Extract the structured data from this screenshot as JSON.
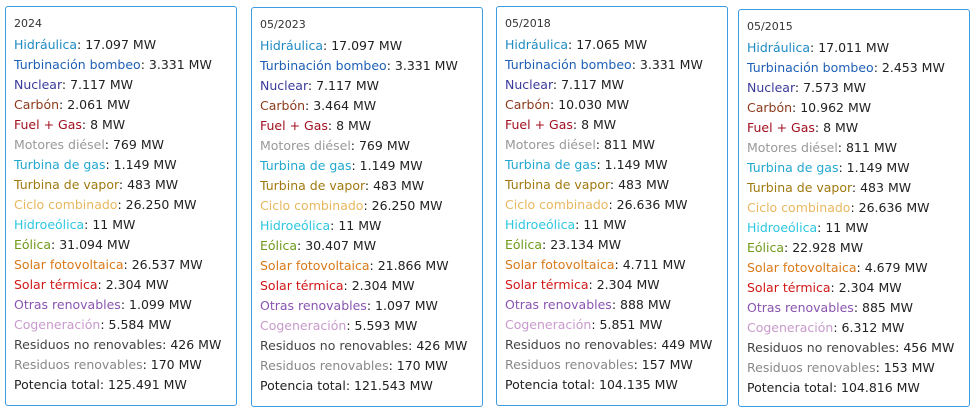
{
  "cards": [
    {
      "date": "2024",
      "rows": [
        {
          "label": "Hidráulica",
          "value": "17.097 MW",
          "color": "#1e8bc3"
        },
        {
          "label": "Turbinación bombeo",
          "value": "3.331 MW",
          "color": "#1e5fb5"
        },
        {
          "label": "Nuclear",
          "value": "7.117 MW",
          "color": "#3b3b9a"
        },
        {
          "label": "Carbón",
          "value": "2.061 MW",
          "color": "#8b3a1a"
        },
        {
          "label": "Fuel + Gas",
          "value": "8 MW",
          "color": "#a01020"
        },
        {
          "label": "Motores diésel",
          "value": "769 MW",
          "color": "#999999"
        },
        {
          "label": "Turbina de gas",
          "value": "1.149 MW",
          "color": "#22a7cf"
        },
        {
          "label": "Turbina de vapor",
          "value": "483 MW",
          "color": "#a07a10"
        },
        {
          "label": "Ciclo combinado",
          "value": "26.250 MW",
          "color": "#e8b860"
        },
        {
          "label": "Hidroeólica",
          "value": "11 MW",
          "color": "#2ec7e0"
        },
        {
          "label": "Eólica",
          "value": "31.094 MW",
          "color": "#6f9a1a"
        },
        {
          "label": "Solar fotovoltaica",
          "value": "26.537 MW",
          "color": "#d97a1a"
        },
        {
          "label": "Solar térmica",
          "value": "2.304 MW",
          "color": "#d01818"
        },
        {
          "label": "Otras renovables",
          "value": "1.099 MW",
          "color": "#8a55b0"
        },
        {
          "label": "Cogeneración",
          "value": "5.584 MW",
          "color": "#c89acc"
        },
        {
          "label": "Residuos no renovables",
          "value": "426 MW",
          "color": "#444444"
        },
        {
          "label": "Residuos renovables",
          "value": "170 MW",
          "color": "#888888"
        },
        {
          "label": "Potencia total",
          "value": "125.491 MW",
          "color": "#222222"
        }
      ]
    },
    {
      "date": "05/2023",
      "rows": [
        {
          "label": "Hidráulica",
          "value": "17.097 MW",
          "color": "#1e8bc3"
        },
        {
          "label": "Turbinación bombeo",
          "value": "3.331 MW",
          "color": "#1e5fb5"
        },
        {
          "label": "Nuclear",
          "value": "7.117 MW",
          "color": "#3b3b9a"
        },
        {
          "label": "Carbón",
          "value": "3.464 MW",
          "color": "#8b3a1a"
        },
        {
          "label": "Fuel + Gas",
          "value": "8 MW",
          "color": "#a01020"
        },
        {
          "label": "Motores diésel",
          "value": "769 MW",
          "color": "#999999"
        },
        {
          "label": "Turbina de gas",
          "value": "1.149 MW",
          "color": "#22a7cf"
        },
        {
          "label": "Turbina de vapor",
          "value": "483 MW",
          "color": "#a07a10"
        },
        {
          "label": "Ciclo combinado",
          "value": "26.250 MW",
          "color": "#e8b860"
        },
        {
          "label": "Hidroeólica",
          "value": "11 MW",
          "color": "#2ec7e0"
        },
        {
          "label": "Eólica",
          "value": "30.407 MW",
          "color": "#6f9a1a"
        },
        {
          "label": "Solar fotovoltaica",
          "value": "21.866 MW",
          "color": "#d97a1a"
        },
        {
          "label": "Solar térmica",
          "value": "2.304 MW",
          "color": "#d01818"
        },
        {
          "label": "Otras renovables",
          "value": "1.097 MW",
          "color": "#8a55b0"
        },
        {
          "label": "Cogeneración",
          "value": "5.593 MW",
          "color": "#c89acc"
        },
        {
          "label": "Residuos no renovables",
          "value": "426 MW",
          "color": "#444444"
        },
        {
          "label": "Residuos renovables",
          "value": "170 MW",
          "color": "#888888"
        },
        {
          "label": "Potencia total",
          "value": "121.543 MW",
          "color": "#222222"
        }
      ]
    },
    {
      "date": "05/2018",
      "rows": [
        {
          "label": "Hidráulica",
          "value": "17.065 MW",
          "color": "#1e8bc3"
        },
        {
          "label": "Turbinación bombeo",
          "value": "3.331 MW",
          "color": "#1e5fb5"
        },
        {
          "label": "Nuclear",
          "value": "7.117 MW",
          "color": "#3b3b9a"
        },
        {
          "label": "Carbón",
          "value": "10.030 MW",
          "color": "#8b3a1a"
        },
        {
          "label": "Fuel + Gas",
          "value": "8 MW",
          "color": "#a01020"
        },
        {
          "label": "Motores diésel",
          "value": "811 MW",
          "color": "#999999"
        },
        {
          "label": "Turbina de gas",
          "value": "1.149 MW",
          "color": "#22a7cf"
        },
        {
          "label": "Turbina de vapor",
          "value": "483 MW",
          "color": "#a07a10"
        },
        {
          "label": "Ciclo combinado",
          "value": "26.636 MW",
          "color": "#e8b860"
        },
        {
          "label": "Hidroeólica",
          "value": "11 MW",
          "color": "#2ec7e0"
        },
        {
          "label": "Eólica",
          "value": "23.134 MW",
          "color": "#6f9a1a"
        },
        {
          "label": "Solar fotovoltaica",
          "value": "4.711 MW",
          "color": "#d97a1a"
        },
        {
          "label": "Solar térmica",
          "value": "2.304 MW",
          "color": "#d01818"
        },
        {
          "label": "Otras renovables",
          "value": "888 MW",
          "color": "#8a55b0"
        },
        {
          "label": "Cogeneración",
          "value": "5.851 MW",
          "color": "#c89acc"
        },
        {
          "label": "Residuos no renovables",
          "value": "449 MW",
          "color": "#444444"
        },
        {
          "label": "Residuos renovables",
          "value": "157 MW",
          "color": "#888888"
        },
        {
          "label": "Potencia total",
          "value": "104.135 MW",
          "color": "#222222"
        }
      ]
    },
    {
      "date": "05/2015",
      "rows": [
        {
          "label": "Hidráulica",
          "value": "17.011 MW",
          "color": "#1e8bc3"
        },
        {
          "label": "Turbinación bombeo",
          "value": "2.453 MW",
          "color": "#1e5fb5"
        },
        {
          "label": "Nuclear",
          "value": "7.573 MW",
          "color": "#3b3b9a"
        },
        {
          "label": "Carbón",
          "value": "10.962 MW",
          "color": "#8b3a1a"
        },
        {
          "label": "Fuel + Gas",
          "value": "8 MW",
          "color": "#a01020"
        },
        {
          "label": "Motores diésel",
          "value": "811 MW",
          "color": "#999999"
        },
        {
          "label": "Turbina de gas",
          "value": "1.149 MW",
          "color": "#22a7cf"
        },
        {
          "label": "Turbina de vapor",
          "value": "483 MW",
          "color": "#a07a10"
        },
        {
          "label": "Ciclo combinado",
          "value": "26.636 MW",
          "color": "#e8b860"
        },
        {
          "label": "Hidroeólica",
          "value": "11 MW",
          "color": "#2ec7e0"
        },
        {
          "label": "Eólica",
          "value": "22.928 MW",
          "color": "#6f9a1a"
        },
        {
          "label": "Solar fotovoltaica",
          "value": "4.679 MW",
          "color": "#d97a1a"
        },
        {
          "label": "Solar térmica",
          "value": "2.304 MW",
          "color": "#d01818"
        },
        {
          "label": "Otras renovables",
          "value": "885 MW",
          "color": "#8a55b0"
        },
        {
          "label": "Cogeneración",
          "value": "6.312 MW",
          "color": "#c89acc"
        },
        {
          "label": "Residuos no renovables",
          "value": "456 MW",
          "color": "#444444"
        },
        {
          "label": "Residuos renovables",
          "value": "153 MW",
          "color": "#888888"
        },
        {
          "label": "Potencia total",
          "value": "104.816 MW",
          "color": "#222222"
        }
      ]
    }
  ]
}
